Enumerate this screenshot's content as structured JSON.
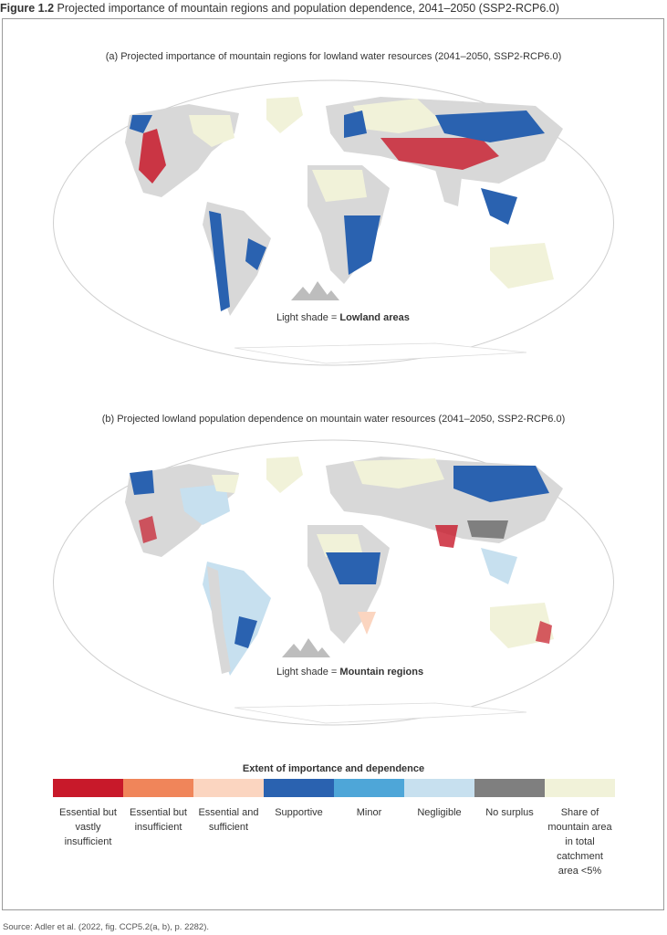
{
  "figure": {
    "number": "Figure 1.2",
    "title": "Projected importance of mountain regions and population dependence, 2041–2050 (SSP2-RCP6.0)"
  },
  "panel_a": {
    "title": "(a) Projected importance of mountain regions for lowland water resources (2041–2050, SSP2-RCP6.0)",
    "caption_prefix": "Light shade = ",
    "caption_bold": "Lowland areas"
  },
  "panel_b": {
    "title": "(b) Projected lowland population dependence on mountain water resources (2041–2050, SSP2-RCP6.0)",
    "caption_prefix": "Light shade = ",
    "caption_bold": "Mountain regions"
  },
  "legend": {
    "title": "Extent of importance and dependence",
    "items": [
      {
        "label": "Essential but vastly insufficient",
        "color": "#c8192a"
      },
      {
        "label": "Essential but insufficient",
        "color": "#f0855a"
      },
      {
        "label": "Essential and sufficient",
        "color": "#fbd5c0"
      },
      {
        "label": "Supportive",
        "color": "#2a62b0"
      },
      {
        "label": "Minor",
        "color": "#4ea6d8"
      },
      {
        "label": "Negligible",
        "color": "#c7e0ef"
      },
      {
        "label": "No surplus",
        "color": "#7f7f7f"
      },
      {
        "label": "Share of mountain area in total catchment area <5%",
        "color": "#f1f2d9"
      }
    ]
  },
  "colors": {
    "land": "#d8d8d8",
    "outline": "#c9c9c9"
  },
  "source": "Source: Adler et al. (2022, fig. CCP5.2(a, b), p. 2282)."
}
